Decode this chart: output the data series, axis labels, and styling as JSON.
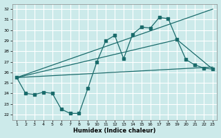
{
  "xlabel": "Humidex (Indice chaleur)",
  "bg_color": "#cceaea",
  "grid_color": "#ffffff",
  "line_color": "#1a6b6b",
  "xlim": [
    0.5,
    23.5
  ],
  "ylim": [
    21.5,
    32.5
  ],
  "xticks": [
    1,
    2,
    3,
    4,
    5,
    6,
    7,
    8,
    9,
    10,
    11,
    12,
    13,
    14,
    15,
    16,
    17,
    18,
    19,
    20,
    21,
    22,
    23
  ],
  "yticks": [
    22,
    23,
    24,
    25,
    26,
    27,
    28,
    29,
    30,
    31,
    32
  ],
  "line1_x": [
    1,
    2,
    3,
    4,
    5,
    6,
    7,
    8,
    9,
    10,
    11,
    12,
    13,
    14,
    15,
    16,
    17,
    18,
    19,
    20,
    21,
    22,
    23
  ],
  "line1_y": [
    25.5,
    24.0,
    23.9,
    24.1,
    24.0,
    22.5,
    22.1,
    22.1,
    24.5,
    27.0,
    29.0,
    29.5,
    27.3,
    29.6,
    30.3,
    30.2,
    31.2,
    31.1,
    29.1,
    27.2,
    26.7,
    26.4,
    26.3
  ],
  "line2_x": [
    1,
    23
  ],
  "line2_y": [
    25.5,
    26.5
  ],
  "line3_x": [
    1,
    23
  ],
  "line3_y": [
    25.5,
    32.0
  ],
  "line4_x": [
    1,
    19,
    23
  ],
  "line4_y": [
    25.5,
    29.1,
    26.3
  ]
}
